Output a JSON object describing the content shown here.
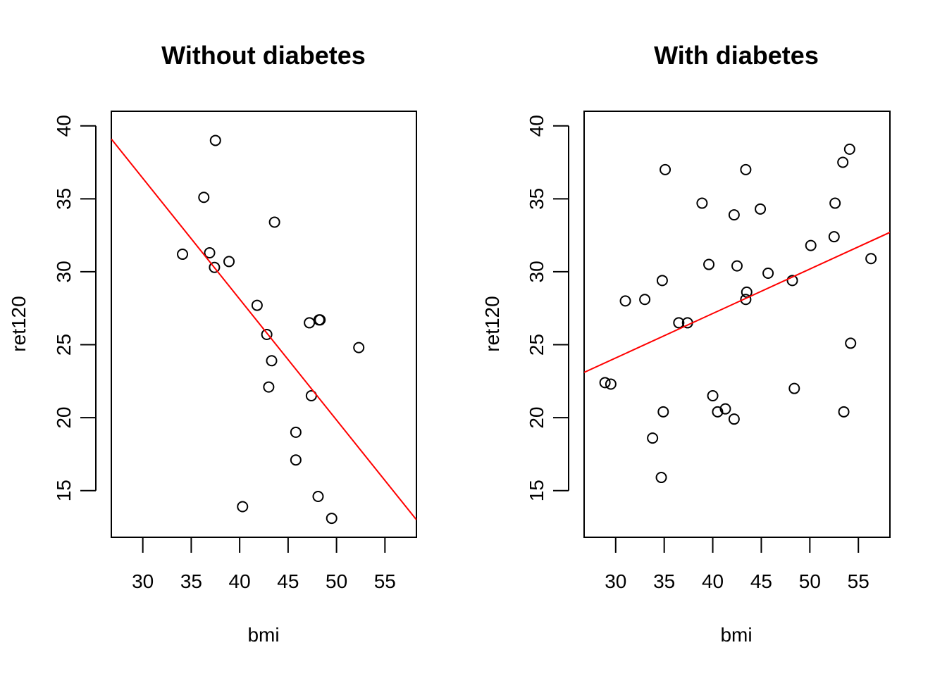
{
  "chart_data": [
    {
      "type": "scatter",
      "title": "Without diabetes",
      "xlabel": "bmi",
      "ylabel": "ret120",
      "xlim": [
        26.75,
        58.25
      ],
      "ylim": [
        11.8,
        41.0
      ],
      "xticks": [
        30,
        35,
        40,
        45,
        50,
        55
      ],
      "yticks": [
        15,
        20,
        25,
        30,
        35,
        40
      ],
      "grid": false,
      "points": [
        {
          "x": 37.5,
          "y": 39.0
        },
        {
          "x": 36.3,
          "y": 35.1
        },
        {
          "x": 43.6,
          "y": 33.4
        },
        {
          "x": 34.1,
          "y": 31.2
        },
        {
          "x": 36.9,
          "y": 31.3
        },
        {
          "x": 38.9,
          "y": 30.7
        },
        {
          "x": 37.4,
          "y": 30.3
        },
        {
          "x": 41.8,
          "y": 27.7
        },
        {
          "x": 47.2,
          "y": 26.5
        },
        {
          "x": 48.2,
          "y": 26.7
        },
        {
          "x": 48.3,
          "y": 26.7
        },
        {
          "x": 42.8,
          "y": 25.7
        },
        {
          "x": 52.3,
          "y": 24.8
        },
        {
          "x": 43.3,
          "y": 23.9
        },
        {
          "x": 43.0,
          "y": 22.1
        },
        {
          "x": 47.4,
          "y": 21.5
        },
        {
          "x": 45.8,
          "y": 19.0
        },
        {
          "x": 45.8,
          "y": 17.1
        },
        {
          "x": 48.1,
          "y": 14.6
        },
        {
          "x": 40.3,
          "y": 13.9
        },
        {
          "x": 49.5,
          "y": 13.1
        }
      ],
      "fit_line": {
        "x": [
          26.75,
          58.25
        ],
        "y": [
          39.1,
          13.0
        ],
        "color": "#ff0000"
      }
    },
    {
      "type": "scatter",
      "title": "With diabetes",
      "xlabel": "bmi",
      "ylabel": "ret120",
      "xlim": [
        26.75,
        58.25
      ],
      "ylim": [
        11.8,
        41.0
      ],
      "xticks": [
        30,
        35,
        40,
        45,
        50,
        55
      ],
      "yticks": [
        15,
        20,
        25,
        30,
        35,
        40
      ],
      "grid": false,
      "points": [
        {
          "x": 54.1,
          "y": 38.4
        },
        {
          "x": 53.4,
          "y": 37.5
        },
        {
          "x": 35.1,
          "y": 37.0
        },
        {
          "x": 43.4,
          "y": 37.0
        },
        {
          "x": 38.9,
          "y": 34.7
        },
        {
          "x": 52.6,
          "y": 34.7
        },
        {
          "x": 44.9,
          "y": 34.3
        },
        {
          "x": 42.2,
          "y": 33.9
        },
        {
          "x": 52.5,
          "y": 32.4
        },
        {
          "x": 50.1,
          "y": 31.8
        },
        {
          "x": 56.3,
          "y": 30.9
        },
        {
          "x": 39.6,
          "y": 30.5
        },
        {
          "x": 42.5,
          "y": 30.4
        },
        {
          "x": 45.7,
          "y": 29.9
        },
        {
          "x": 34.8,
          "y": 29.4
        },
        {
          "x": 48.2,
          "y": 29.4
        },
        {
          "x": 43.5,
          "y": 28.6
        },
        {
          "x": 33.0,
          "y": 28.1
        },
        {
          "x": 43.4,
          "y": 28.1
        },
        {
          "x": 31.0,
          "y": 28.0
        },
        {
          "x": 36.5,
          "y": 26.5
        },
        {
          "x": 37.4,
          "y": 26.5
        },
        {
          "x": 54.2,
          "y": 25.1
        },
        {
          "x": 28.9,
          "y": 22.4
        },
        {
          "x": 29.5,
          "y": 22.3
        },
        {
          "x": 48.4,
          "y": 22.0
        },
        {
          "x": 40.0,
          "y": 21.5
        },
        {
          "x": 41.3,
          "y": 20.6
        },
        {
          "x": 34.9,
          "y": 20.4
        },
        {
          "x": 40.5,
          "y": 20.4
        },
        {
          "x": 53.5,
          "y": 20.4
        },
        {
          "x": 42.2,
          "y": 19.9
        },
        {
          "x": 33.8,
          "y": 18.6
        },
        {
          "x": 34.7,
          "y": 15.9
        }
      ],
      "fit_line": {
        "x": [
          26.75,
          58.25
        ],
        "y": [
          23.1,
          32.7
        ],
        "color": "#ff0000"
      }
    }
  ]
}
